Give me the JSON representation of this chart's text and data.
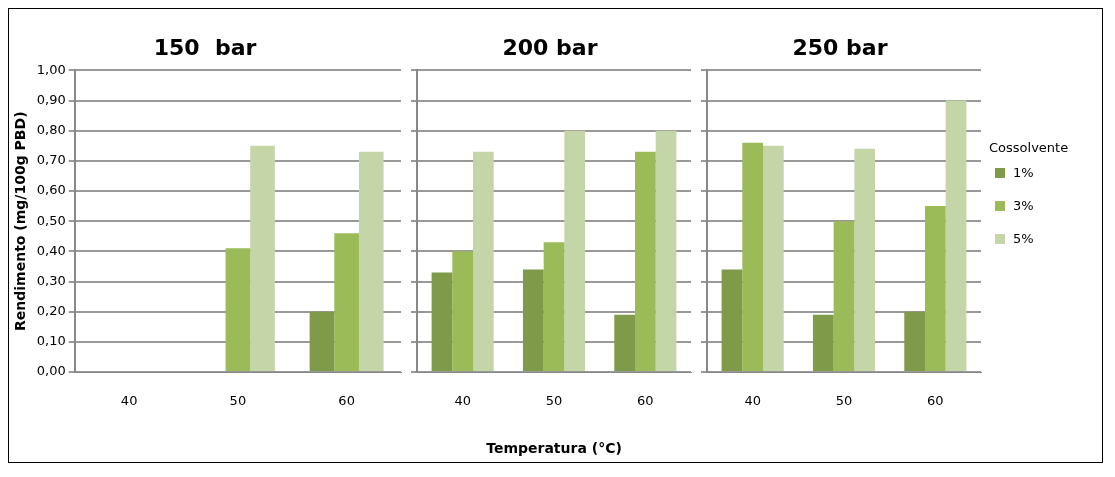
{
  "chart_data": [
    {
      "type": "bar",
      "title": "150  bar",
      "ylabel": "Rendimento (mg/100g PBD)",
      "categories": [
        "40",
        "50",
        "60"
      ],
      "series": [
        {
          "color": "#7f9a48",
          "values": [
            null,
            null,
            0.2
          ]
        },
        {
          "color": "#9bbb59",
          "values": [
            null,
            0.41,
            0.46
          ]
        },
        {
          "color": "#c4d6a8",
          "values": [
            null,
            0.75,
            0.73
          ]
        }
      ],
      "ylim": [
        0,
        1
      ],
      "yticks": [
        {
          "value": 0,
          "label": "0,00"
        },
        {
          "value": 0.1,
          "label": "0,10"
        },
        {
          "value": 0.2,
          "label": "0,20"
        },
        {
          "value": 0.3,
          "label": "0,30"
        },
        {
          "value": 0.4,
          "label": "0,40"
        },
        {
          "value": 0.5,
          "label": "0,50"
        },
        {
          "value": 0.6,
          "label": "0,60"
        },
        {
          "value": 0.7,
          "label": "0,70"
        },
        {
          "value": 0.8,
          "label": "0,80"
        },
        {
          "value": 0.9,
          "label": "0,90"
        },
        {
          "value": 1,
          "label": "1,00"
        }
      ],
      "grid": "y"
    },
    {
      "type": "bar",
      "title": "200 bar",
      "xlabel": "Temperatura (°C)",
      "categories": [
        "40",
        "50",
        "60"
      ],
      "series": [
        {
          "color": "#7f9a48",
          "values": [
            0.33,
            0.34,
            0.19
          ]
        },
        {
          "color": "#9bbb59",
          "values": [
            0.4,
            0.43,
            0.73
          ]
        },
        {
          "color": "#c4d6a8",
          "values": [
            0.73,
            0.8,
            0.8
          ]
        }
      ],
      "ylim": [
        0,
        1
      ],
      "yticks": [
        0,
        0.1,
        0.2,
        0.3,
        0.4,
        0.5,
        0.6,
        0.7,
        0.8,
        0.9,
        1
      ],
      "grid": "y",
      "tick_labels": "x"
    },
    {
      "type": "bar",
      "title": "250 bar",
      "legend_title": "Cossolvente",
      "legend": "right",
      "categories": [
        "40",
        "50",
        "60"
      ],
      "series": [
        {
          "name": "1%",
          "color": "#7f9a48",
          "values": [
            0.34,
            0.19,
            0.2
          ]
        },
        {
          "name": "3%",
          "color": "#9bbb59",
          "values": [
            0.76,
            0.5,
            0.55
          ]
        },
        {
          "name": "5%",
          "color": "#c4d6a8",
          "values": [
            0.75,
            0.74,
            0.9
          ]
        }
      ],
      "ylim": [
        0,
        1
      ],
      "yticks": [
        0,
        0.1,
        0.2,
        0.3,
        0.4,
        0.5,
        0.6,
        0.7,
        0.8,
        0.9,
        1
      ],
      "grid": "y",
      "tick_labels": "x"
    }
  ]
}
